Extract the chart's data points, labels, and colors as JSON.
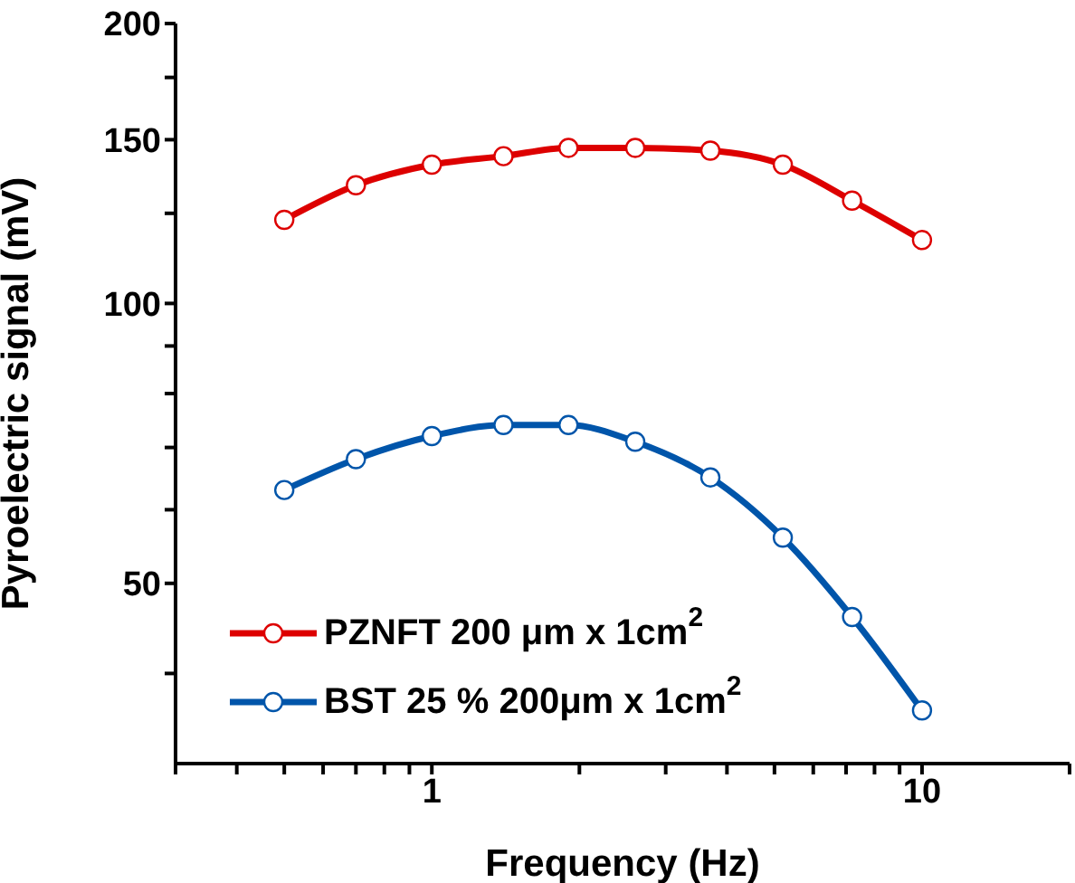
{
  "chart_data": {
    "type": "line",
    "xlabel": "Frequency (Hz)",
    "ylabel": "Pyroelectric signal (mV)",
    "log": "xy",
    "marker": "circle",
    "line_style": "solid",
    "grid": false,
    "legend": "bottom left",
    "x": [
      0.5,
      0.7,
      1,
      1.4,
      1.9,
      2.6,
      3.7,
      5.2,
      7.2,
      10
    ],
    "series": [
      {
        "name": "PZNFT 200 μm x 1cm$^{2}$",
        "color": "#dd0000",
        "values": [
          123,
          134,
          141,
          144,
          147,
          147,
          146,
          141,
          129,
          117
        ]
      },
      {
        "name": "BST 25 % 200μm x 1cm$^{2}$",
        "color": "#0055aa",
        "values": [
          63,
          68,
          72,
          74,
          74,
          71,
          65,
          56,
          46,
          36.5
        ]
      }
    ],
    "xlim": [
      0.3,
      20
    ],
    "xticks": [
      {
        "value": 0.3,
        "label": null
      },
      {
        "value": 0.4,
        "label": null
      },
      {
        "value": 0.5,
        "label": null
      },
      {
        "value": 0.6,
        "label": null
      },
      {
        "value": 0.7,
        "label": null
      },
      {
        "value": 0.8,
        "label": null
      },
      {
        "value": 0.9,
        "label": null
      },
      1,
      {
        "value": 2,
        "label": null
      },
      {
        "value": 3,
        "label": null
      },
      {
        "value": 4,
        "label": null
      },
      {
        "value": 5,
        "label": null
      },
      {
        "value": 6,
        "label": null
      },
      {
        "value": 7,
        "label": null
      },
      {
        "value": 8,
        "label": null
      },
      {
        "value": 9,
        "label": null
      },
      10,
      {
        "value": 20,
        "label": null
      }
    ],
    "ylim": [
      32,
      200
    ],
    "yticks": [
      {
        "value": 40,
        "label": null
      },
      50,
      {
        "value": 60,
        "label": null
      },
      {
        "value": 70,
        "label": null
      },
      {
        "value": 80,
        "label": null
      },
      {
        "value": 90,
        "label": null
      },
      100,
      {
        "value": 125,
        "label": null
      },
      150,
      {
        "value": 175,
        "label": null
      },
      200
    ]
  }
}
